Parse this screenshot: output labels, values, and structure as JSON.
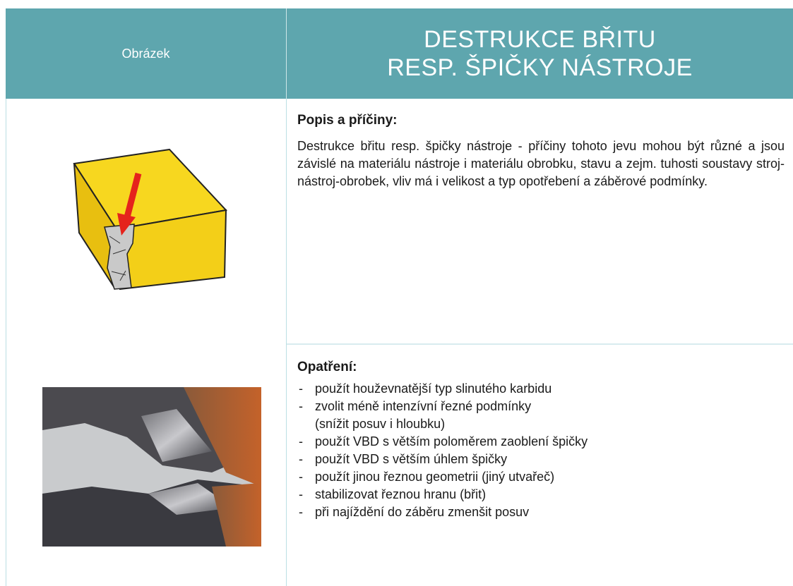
{
  "header": {
    "left": "Obrázek",
    "title": [
      "DESTRUKCE BŘITU",
      "RESP. ŠPIČKY NÁSTROJE"
    ]
  },
  "description": {
    "heading": "Popis a příčiny:",
    "text": "Destrukce břitu resp. špičky nástroje - příčiny tohoto jevu mohou být různé a jsou závislé na materiálu nástroje i materiálu obrobku, stavu a zejm. tuhosti soustavy stroj-nástroj-obrobek, vliv má i velikost a typ opotřebení a záběrové podmínky."
  },
  "measures": {
    "heading": "Opatření:",
    "items": [
      "použít houževnatější typ slinutého karbidu",
      "zvolit méně intenzívní řezné podmínky\n(snížit posuv i hloubku)",
      "použít VBD s větším poloměrem zaoblení špičky",
      "použít VBD s větším úhlem špičky",
      "použít jinou řeznou geometrii (jiný utvařeč)",
      "stabilizovat řeznou hranu (břit)",
      "při najíždění do záběru zmenšit posuv"
    ]
  }
}
